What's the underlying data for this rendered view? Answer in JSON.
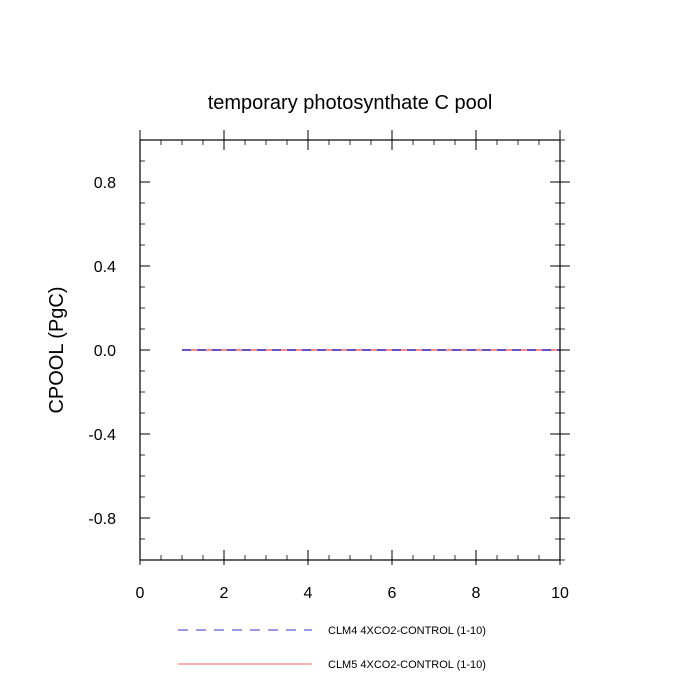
{
  "chart_data": {
    "type": "line",
    "title": "temporary photosynthate C pool",
    "xlabel": "",
    "ylabel": "CPOOL  (PgC)",
    "xlim": [
      0,
      10
    ],
    "ylim": [
      -1.0,
      1.0
    ],
    "x_ticks": [
      0,
      2,
      4,
      6,
      8,
      10
    ],
    "x_tick_labels": [
      "0",
      "2",
      "4",
      "6",
      "8",
      "10"
    ],
    "y_ticks": [
      -0.8,
      -0.4,
      0.0,
      0.4,
      0.8
    ],
    "y_tick_labels": [
      "-0.8",
      "-0.4",
      "0.0",
      "0.4",
      "0.8"
    ],
    "grid": false,
    "legend_position": "bottom",
    "x": [
      1,
      2,
      3,
      4,
      5,
      6,
      7,
      8,
      9,
      10
    ],
    "series": [
      {
        "name": "CLM4 4XCO2-CONTROL (1-10)",
        "color": "#3333cc",
        "style": "dashed",
        "values": [
          0,
          0,
          0,
          0,
          0,
          0,
          0,
          0,
          0,
          0
        ]
      },
      {
        "name": "CLM5 4XCO2-CONTROL (1-10)",
        "color": "#ff6666",
        "style": "solid",
        "values": [
          0,
          0,
          0,
          0,
          0,
          0,
          0,
          0,
          0,
          0
        ]
      }
    ]
  }
}
